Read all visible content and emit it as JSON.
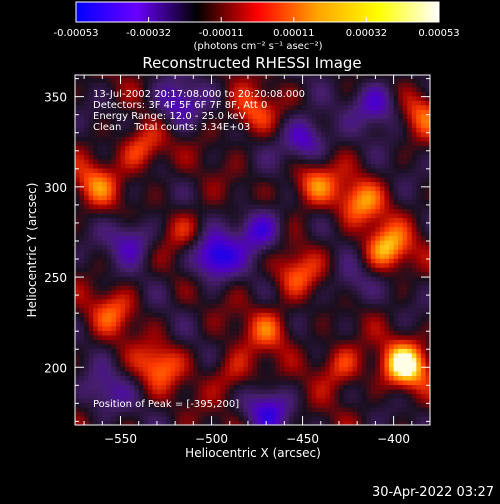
{
  "chart_data": {
    "type": "heatmap",
    "title": "Reconstructed RHESSI Image",
    "xlabel": "Heliocentric X (arcsec)",
    "ylabel": "Heliocentric Y (arcsec)",
    "xlim": [
      -575,
      -380
    ],
    "ylim": [
      168,
      362
    ],
    "xticks": [
      -550,
      -500,
      -450,
      -400
    ],
    "yticks": [
      200,
      250,
      300,
      350
    ],
    "annotations": [
      "13-Jul-2002 20:17:08.000 to 20:20:08.000",
      "Detectors: 3F 4F 5F 6F 7F 8F, Att 0",
      "Energy Range: 12.0 - 25.0 keV",
      "Clean    Total counts: 3.34E+03"
    ],
    "peak_label": "Position of Peak = [-395,200]",
    "peak_position": [
      -395,
      200
    ],
    "colorbar": {
      "ticks": [
        "-0.00053",
        "-0.00032",
        "-0.00011",
        "0.00011",
        "0.00032",
        "0.00053"
      ],
      "unit_label": "(photons cm⁻² s⁻¹ asec⁻²)",
      "range": [
        -0.00053,
        0.00053
      ]
    },
    "colormap": [
      "#0000ff",
      "#6a00ff",
      "#000000",
      "#ff0000",
      "#ffa500",
      "#ffff00",
      "#ffffff"
    ],
    "hotspots": [
      {
        "x": -395,
        "y": 200,
        "v": 1.0
      },
      {
        "x": -405,
        "y": 265,
        "v": 0.8
      },
      {
        "x": -420,
        "y": 290,
        "v": 0.6
      },
      {
        "x": -445,
        "y": 300,
        "v": 0.65
      },
      {
        "x": -455,
        "y": 250,
        "v": 0.5
      },
      {
        "x": -470,
        "y": 220,
        "v": 0.45
      },
      {
        "x": -540,
        "y": 320,
        "v": 0.55
      },
      {
        "x": -565,
        "y": 300,
        "v": 0.5
      },
      {
        "x": -530,
        "y": 200,
        "v": 0.55
      },
      {
        "x": -555,
        "y": 230,
        "v": 0.45
      },
      {
        "x": -490,
        "y": 195,
        "v": 0.4
      },
      {
        "x": -480,
        "y": 340,
        "v": 0.5
      },
      {
        "x": -515,
        "y": 275,
        "v": 0.35
      },
      {
        "x": -385,
        "y": 340,
        "v": 0.45
      },
      {
        "x": -430,
        "y": 200,
        "v": 0.5
      },
      {
        "x": -500,
        "y": 260,
        "v": -0.9
      },
      {
        "x": -450,
        "y": 325,
        "v": -0.7
      },
      {
        "x": -470,
        "y": 175,
        "v": -0.6
      },
      {
        "x": -545,
        "y": 270,
        "v": -0.55
      },
      {
        "x": -410,
        "y": 345,
        "v": -0.6
      },
      {
        "x": -520,
        "y": 345,
        "v": -0.6
      },
      {
        "x": -475,
        "y": 275,
        "v": -0.7
      },
      {
        "x": -560,
        "y": 185,
        "v": -0.4
      },
      {
        "x": -425,
        "y": 245,
        "v": -0.35
      }
    ]
  },
  "footer": {
    "timestamp": "30-Apr-2022 03:27"
  }
}
